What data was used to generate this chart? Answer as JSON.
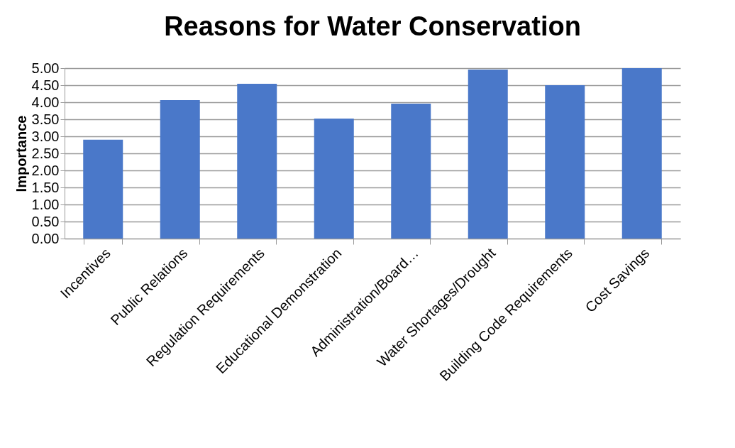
{
  "chart_data": {
    "type": "bar",
    "title": "Reasons for Water Conservation",
    "ylabel": "Importance",
    "categories": [
      "Incentives",
      "Public Relations",
      "Regulation Requirements",
      "Educational Demonstration",
      "Administration/Board…",
      "Water Shortages/Drought",
      "Building Code Requirements",
      "Cost Savings"
    ],
    "values": [
      2.9,
      4.06,
      4.54,
      3.52,
      3.96,
      4.96,
      4.5,
      5.0
    ],
    "color": "#4a78c9",
    "ylim": [
      0,
      5
    ],
    "yticks": [
      {
        "value": 0,
        "label": "0.00"
      },
      {
        "value": 0.5,
        "label": "0.50"
      },
      {
        "value": 1,
        "label": "1.00"
      },
      {
        "value": 1.5,
        "label": "1.50"
      },
      {
        "value": 2,
        "label": "2.00"
      },
      {
        "value": 2.5,
        "label": "2.50"
      },
      {
        "value": 3,
        "label": "3.00"
      },
      {
        "value": 3.5,
        "label": "3.50"
      },
      {
        "value": 4,
        "label": "4.00"
      },
      {
        "value": 4.5,
        "label": "4.50"
      },
      {
        "value": 5,
        "label": "5.00"
      }
    ],
    "grid": "y"
  }
}
